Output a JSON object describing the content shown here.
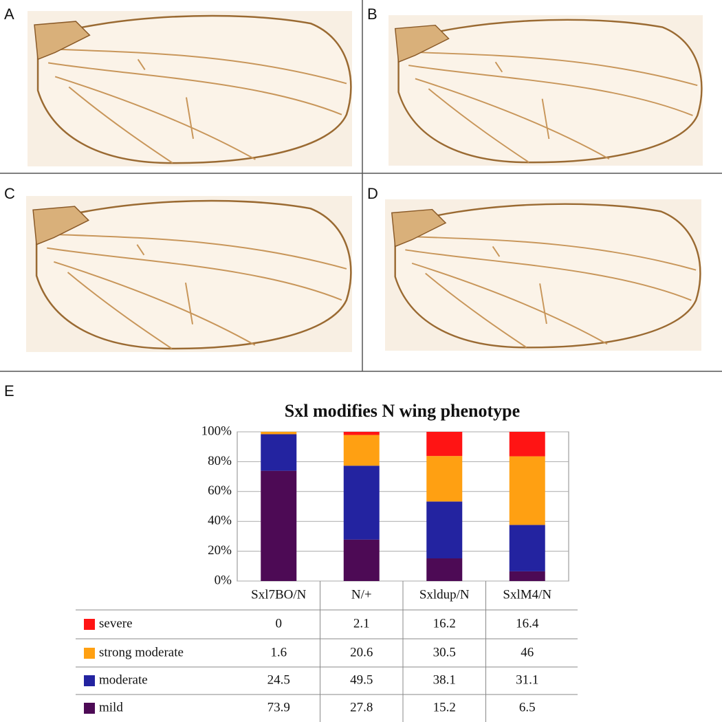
{
  "panel_labels": [
    "A",
    "B",
    "C",
    "D",
    "E"
  ],
  "chart_data": {
    "type": "stacked_bar",
    "title": "Sxl modifies N wing phenotype",
    "categories": [
      "Sxl7BO/N",
      "N/+",
      "Sxldup/N",
      "SxlM4/N"
    ],
    "series": [
      {
        "name": "mild",
        "color": "#4d0a55",
        "values": [
          73.9,
          27.8,
          15.2,
          6.5
        ]
      },
      {
        "name": "moderate",
        "color": "#2323a0",
        "values": [
          24.5,
          49.5,
          38.1,
          31.1
        ]
      },
      {
        "name": "strong moderate",
        "color": "#ffa012",
        "values": [
          1.6,
          20.6,
          30.5,
          46
        ]
      },
      {
        "name": "severe",
        "color": "#ff1414",
        "values": [
          0,
          2.1,
          16.2,
          16.4
        ]
      }
    ],
    "ylim": [
      0,
      100
    ],
    "yticks": [
      {
        "value": 0,
        "label": "0%"
      },
      {
        "value": 20,
        "label": "20%"
      },
      {
        "value": 40,
        "label": "40%"
      },
      {
        "value": 60,
        "label": "60%"
      },
      {
        "value": 80,
        "label": "80%"
      },
      {
        "value": 100,
        "label": "100%"
      }
    ],
    "grid": true
  }
}
